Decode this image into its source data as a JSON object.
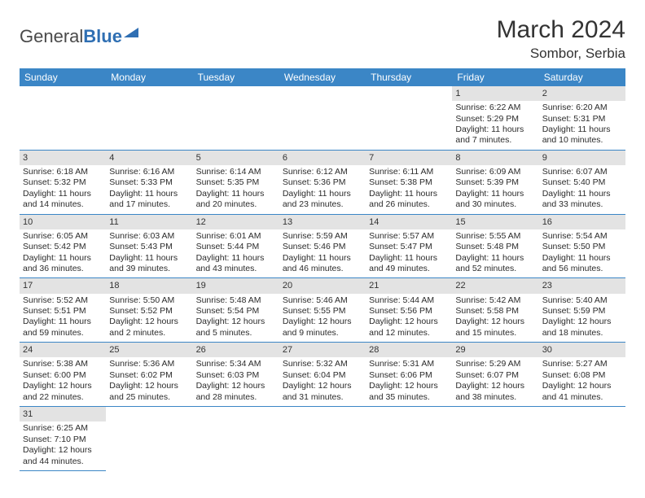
{
  "logo": {
    "textA": "General",
    "textB": "Blue"
  },
  "title": "March 2024",
  "location": "Sombor, Serbia",
  "columns": [
    "Sunday",
    "Monday",
    "Tuesday",
    "Wednesday",
    "Thursday",
    "Friday",
    "Saturday"
  ],
  "colors": {
    "header_bg": "#3b86c6",
    "header_fg": "#ffffff",
    "daynum_bg": "#e3e3e3",
    "rule": "#3b86c6",
    "text": "#2b2b2b",
    "logo_gray": "#4a4a4a",
    "logo_blue": "#2f6fb3"
  },
  "weeks": [
    [
      null,
      null,
      null,
      null,
      null,
      {
        "n": "1",
        "sr": "Sunrise: 6:22 AM",
        "ss": "Sunset: 5:29 PM",
        "d1": "Daylight: 11 hours",
        "d2": "and 7 minutes."
      },
      {
        "n": "2",
        "sr": "Sunrise: 6:20 AM",
        "ss": "Sunset: 5:31 PM",
        "d1": "Daylight: 11 hours",
        "d2": "and 10 minutes."
      }
    ],
    [
      {
        "n": "3",
        "sr": "Sunrise: 6:18 AM",
        "ss": "Sunset: 5:32 PM",
        "d1": "Daylight: 11 hours",
        "d2": "and 14 minutes."
      },
      {
        "n": "4",
        "sr": "Sunrise: 6:16 AM",
        "ss": "Sunset: 5:33 PM",
        "d1": "Daylight: 11 hours",
        "d2": "and 17 minutes."
      },
      {
        "n": "5",
        "sr": "Sunrise: 6:14 AM",
        "ss": "Sunset: 5:35 PM",
        "d1": "Daylight: 11 hours",
        "d2": "and 20 minutes."
      },
      {
        "n": "6",
        "sr": "Sunrise: 6:12 AM",
        "ss": "Sunset: 5:36 PM",
        "d1": "Daylight: 11 hours",
        "d2": "and 23 minutes."
      },
      {
        "n": "7",
        "sr": "Sunrise: 6:11 AM",
        "ss": "Sunset: 5:38 PM",
        "d1": "Daylight: 11 hours",
        "d2": "and 26 minutes."
      },
      {
        "n": "8",
        "sr": "Sunrise: 6:09 AM",
        "ss": "Sunset: 5:39 PM",
        "d1": "Daylight: 11 hours",
        "d2": "and 30 minutes."
      },
      {
        "n": "9",
        "sr": "Sunrise: 6:07 AM",
        "ss": "Sunset: 5:40 PM",
        "d1": "Daylight: 11 hours",
        "d2": "and 33 minutes."
      }
    ],
    [
      {
        "n": "10",
        "sr": "Sunrise: 6:05 AM",
        "ss": "Sunset: 5:42 PM",
        "d1": "Daylight: 11 hours",
        "d2": "and 36 minutes."
      },
      {
        "n": "11",
        "sr": "Sunrise: 6:03 AM",
        "ss": "Sunset: 5:43 PM",
        "d1": "Daylight: 11 hours",
        "d2": "and 39 minutes."
      },
      {
        "n": "12",
        "sr": "Sunrise: 6:01 AM",
        "ss": "Sunset: 5:44 PM",
        "d1": "Daylight: 11 hours",
        "d2": "and 43 minutes."
      },
      {
        "n": "13",
        "sr": "Sunrise: 5:59 AM",
        "ss": "Sunset: 5:46 PM",
        "d1": "Daylight: 11 hours",
        "d2": "and 46 minutes."
      },
      {
        "n": "14",
        "sr": "Sunrise: 5:57 AM",
        "ss": "Sunset: 5:47 PM",
        "d1": "Daylight: 11 hours",
        "d2": "and 49 minutes."
      },
      {
        "n": "15",
        "sr": "Sunrise: 5:55 AM",
        "ss": "Sunset: 5:48 PM",
        "d1": "Daylight: 11 hours",
        "d2": "and 52 minutes."
      },
      {
        "n": "16",
        "sr": "Sunrise: 5:54 AM",
        "ss": "Sunset: 5:50 PM",
        "d1": "Daylight: 11 hours",
        "d2": "and 56 minutes."
      }
    ],
    [
      {
        "n": "17",
        "sr": "Sunrise: 5:52 AM",
        "ss": "Sunset: 5:51 PM",
        "d1": "Daylight: 11 hours",
        "d2": "and 59 minutes."
      },
      {
        "n": "18",
        "sr": "Sunrise: 5:50 AM",
        "ss": "Sunset: 5:52 PM",
        "d1": "Daylight: 12 hours",
        "d2": "and 2 minutes."
      },
      {
        "n": "19",
        "sr": "Sunrise: 5:48 AM",
        "ss": "Sunset: 5:54 PM",
        "d1": "Daylight: 12 hours",
        "d2": "and 5 minutes."
      },
      {
        "n": "20",
        "sr": "Sunrise: 5:46 AM",
        "ss": "Sunset: 5:55 PM",
        "d1": "Daylight: 12 hours",
        "d2": "and 9 minutes."
      },
      {
        "n": "21",
        "sr": "Sunrise: 5:44 AM",
        "ss": "Sunset: 5:56 PM",
        "d1": "Daylight: 12 hours",
        "d2": "and 12 minutes."
      },
      {
        "n": "22",
        "sr": "Sunrise: 5:42 AM",
        "ss": "Sunset: 5:58 PM",
        "d1": "Daylight: 12 hours",
        "d2": "and 15 minutes."
      },
      {
        "n": "23",
        "sr": "Sunrise: 5:40 AM",
        "ss": "Sunset: 5:59 PM",
        "d1": "Daylight: 12 hours",
        "d2": "and 18 minutes."
      }
    ],
    [
      {
        "n": "24",
        "sr": "Sunrise: 5:38 AM",
        "ss": "Sunset: 6:00 PM",
        "d1": "Daylight: 12 hours",
        "d2": "and 22 minutes."
      },
      {
        "n": "25",
        "sr": "Sunrise: 5:36 AM",
        "ss": "Sunset: 6:02 PM",
        "d1": "Daylight: 12 hours",
        "d2": "and 25 minutes."
      },
      {
        "n": "26",
        "sr": "Sunrise: 5:34 AM",
        "ss": "Sunset: 6:03 PM",
        "d1": "Daylight: 12 hours",
        "d2": "and 28 minutes."
      },
      {
        "n": "27",
        "sr": "Sunrise: 5:32 AM",
        "ss": "Sunset: 6:04 PM",
        "d1": "Daylight: 12 hours",
        "d2": "and 31 minutes."
      },
      {
        "n": "28",
        "sr": "Sunrise: 5:31 AM",
        "ss": "Sunset: 6:06 PM",
        "d1": "Daylight: 12 hours",
        "d2": "and 35 minutes."
      },
      {
        "n": "29",
        "sr": "Sunrise: 5:29 AM",
        "ss": "Sunset: 6:07 PM",
        "d1": "Daylight: 12 hours",
        "d2": "and 38 minutes."
      },
      {
        "n": "30",
        "sr": "Sunrise: 5:27 AM",
        "ss": "Sunset: 6:08 PM",
        "d1": "Daylight: 12 hours",
        "d2": "and 41 minutes."
      }
    ],
    [
      {
        "n": "31",
        "sr": "Sunrise: 6:25 AM",
        "ss": "Sunset: 7:10 PM",
        "d1": "Daylight: 12 hours",
        "d2": "and 44 minutes."
      },
      null,
      null,
      null,
      null,
      null,
      null
    ]
  ]
}
